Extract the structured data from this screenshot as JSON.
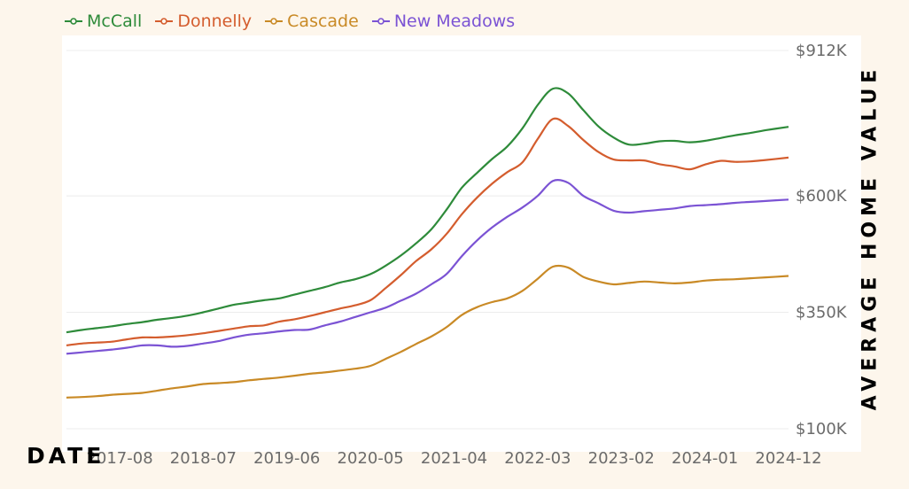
{
  "chart_data": {
    "type": "line",
    "xlabel": "DATE",
    "ylabel": "AVERAGE HOME VALUE",
    "x_ticks": [
      "2017-08",
      "2018-07",
      "2019-06",
      "2020-05",
      "2021-04",
      "2022-03",
      "2023-02",
      "2024-01",
      "2024-12"
    ],
    "y_ticks": [
      "$100K",
      "$350K",
      "$600K",
      "$912K"
    ],
    "y_tick_values": [
      100,
      350,
      600,
      912
    ],
    "y_range": [
      100,
      912
    ],
    "legend_position": "top-left",
    "grid": true,
    "x": [
      "2017-01",
      "2017-03",
      "2017-05",
      "2017-07",
      "2017-09",
      "2017-11",
      "2018-01",
      "2018-03",
      "2018-05",
      "2018-07",
      "2018-09",
      "2018-11",
      "2019-01",
      "2019-03",
      "2019-05",
      "2019-07",
      "2019-09",
      "2019-11",
      "2020-01",
      "2020-03",
      "2020-05",
      "2020-07",
      "2020-09",
      "2020-11",
      "2021-01",
      "2021-03",
      "2021-05",
      "2021-07",
      "2021-09",
      "2021-11",
      "2022-01",
      "2022-03",
      "2022-05",
      "2022-07",
      "2022-09",
      "2022-11",
      "2023-01",
      "2023-03",
      "2023-05",
      "2023-07",
      "2023-09",
      "2023-11",
      "2024-01",
      "2024-03",
      "2024-05",
      "2024-07",
      "2024-09",
      "2024-12"
    ],
    "series": [
      {
        "name": "McCall",
        "color": "#2e8b3a",
        "values": [
          307,
          312,
          316,
          320,
          325,
          329,
          334,
          338,
          343,
          350,
          358,
          366,
          371,
          376,
          380,
          388,
          396,
          404,
          414,
          421,
          432,
          450,
          472,
          498,
          528,
          570,
          617,
          649,
          679,
          706,
          745,
          795,
          830,
          820,
          784,
          749,
          725,
          710,
          712,
          717,
          718,
          715,
          718,
          724,
          730,
          735,
          741,
          748
        ]
      },
      {
        "name": "Donnelly",
        "color": "#d45d2e",
        "values": [
          279,
          283,
          285,
          287,
          292,
          296,
          296,
          298,
          301,
          305,
          310,
          315,
          320,
          322,
          330,
          335,
          342,
          350,
          358,
          365,
          376,
          402,
          430,
          460,
          485,
          518,
          560,
          596,
          626,
          651,
          672,
          722,
          765,
          750,
          720,
          694,
          678,
          676,
          676,
          668,
          663,
          657,
          667,
          675,
          673,
          674,
          677,
          682
        ]
      },
      {
        "name": "Cascade",
        "color": "#c98a26",
        "values": [
          167,
          168,
          170,
          173,
          175,
          177,
          182,
          187,
          191,
          196,
          198,
          200,
          204,
          207,
          210,
          214,
          218,
          221,
          225,
          229,
          235,
          250,
          265,
          282,
          298,
          318,
          344,
          361,
          372,
          380,
          396,
          422,
          448,
          446,
          426,
          416,
          410,
          413,
          416,
          414,
          412,
          414,
          418,
          420,
          421,
          423,
          425,
          428
        ]
      },
      {
        "name": "New Meadows",
        "color": "#7b53d4",
        "values": [
          261,
          264,
          267,
          270,
          274,
          279,
          279,
          276,
          278,
          283,
          288,
          296,
          302,
          305,
          309,
          312,
          313,
          322,
          330,
          340,
          350,
          360,
          375,
          390,
          410,
          432,
          470,
          504,
          532,
          555,
          575,
          600,
          632,
          628,
          600,
          584,
          568,
          564,
          567,
          570,
          573,
          578,
          580,
          582,
          585,
          587,
          589,
          592
        ]
      }
    ]
  }
}
